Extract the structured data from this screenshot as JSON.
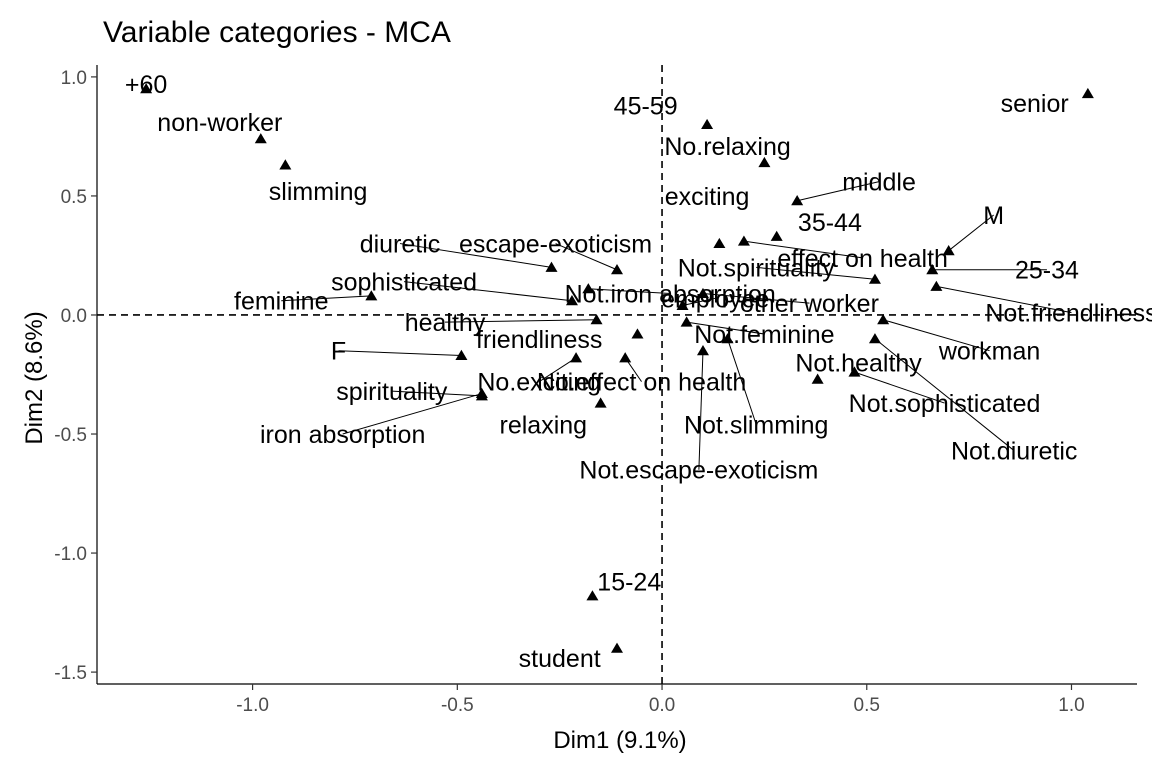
{
  "chart_data": {
    "type": "scatter",
    "title": "Variable categories - MCA",
    "xlabel": "Dim1 (9.1%)",
    "ylabel": "Dim2 (8.6%)",
    "xlim": [
      -1.38,
      1.16
    ],
    "ylim": [
      -1.55,
      1.05
    ],
    "xticks": [
      -1.0,
      -0.5,
      0.0,
      0.5,
      1.0
    ],
    "xtick_labels": [
      "-1.0",
      "-0.5",
      "0.0",
      "0.5",
      "1.0"
    ],
    "yticks": [
      -1.5,
      -1.0,
      -0.5,
      0.0,
      0.5,
      1.0
    ],
    "ytick_labels": [
      "-1.5",
      "-1.0",
      "-0.5",
      "0.0",
      "0.5",
      "1.0"
    ],
    "reference_lines": {
      "x": 0,
      "y": 0
    },
    "grid": false,
    "legend": "none",
    "points": [
      {
        "label": "+60",
        "x": -1.26,
        "y": 0.95,
        "label_x": -1.26,
        "label_y": 0.97,
        "leader": false
      },
      {
        "label": "non-worker",
        "x": -0.98,
        "y": 0.74,
        "label_x": -1.08,
        "label_y": 0.81,
        "leader": false
      },
      {
        "label": "slimming",
        "x": -0.92,
        "y": 0.63,
        "label_x": -0.84,
        "label_y": 0.52,
        "leader": false
      },
      {
        "label": "45-59",
        "x": 0.11,
        "y": 0.8,
        "label_x": -0.04,
        "label_y": 0.88,
        "leader": false
      },
      {
        "label": "No.relaxing",
        "x": 0.25,
        "y": 0.64,
        "label_x": 0.16,
        "label_y": 0.71,
        "leader": false
      },
      {
        "label": "senior",
        "x": 1.04,
        "y": 0.93,
        "label_x": 0.91,
        "label_y": 0.89,
        "leader": false
      },
      {
        "label": "exciting",
        "x": 0.14,
        "y": 0.3,
        "label_x": 0.11,
        "label_y": 0.5,
        "leader": false
      },
      {
        "label": "middle",
        "x": 0.33,
        "y": 0.48,
        "label_x": 0.53,
        "label_y": 0.56,
        "leader": true
      },
      {
        "label": "35-44",
        "x": 0.28,
        "y": 0.33,
        "label_x": 0.41,
        "label_y": 0.39,
        "leader": false
      },
      {
        "label": "M",
        "x": 0.7,
        "y": 0.27,
        "label_x": 0.81,
        "label_y": 0.42,
        "leader": true
      },
      {
        "label": "effect on health",
        "x": 0.2,
        "y": 0.31,
        "label_x": 0.49,
        "label_y": 0.24,
        "leader": true
      },
      {
        "label": "25-34",
        "x": 0.66,
        "y": 0.19,
        "label_x": 0.94,
        "label_y": 0.19,
        "leader": true
      },
      {
        "label": "Not.spirituality",
        "x": 0.52,
        "y": 0.15,
        "label_x": 0.23,
        "label_y": 0.2,
        "leader": true
      },
      {
        "label": "Not.friendliness",
        "x": 0.67,
        "y": 0.12,
        "label_x": 1.0,
        "label_y": 0.01,
        "leader": true
      },
      {
        "label": "other worker",
        "x": 0.1,
        "y": 0.09,
        "label_x": 0.36,
        "label_y": 0.05,
        "leader": true
      },
      {
        "label": "employee",
        "x": 0.05,
        "y": 0.04,
        "label_x": 0.13,
        "label_y": 0.07,
        "leader": true
      },
      {
        "label": "Not.iron absorption",
        "x": -0.18,
        "y": 0.11,
        "label_x": 0.02,
        "label_y": 0.09,
        "leader": true
      },
      {
        "label": "sophisticated",
        "x": -0.22,
        "y": 0.06,
        "label_x": -0.63,
        "label_y": 0.14,
        "leader": true
      },
      {
        "label": "diuretic",
        "x": -0.27,
        "y": 0.2,
        "label_x": -0.64,
        "label_y": 0.3,
        "leader": true
      },
      {
        "label": "escape-exoticism",
        "x": -0.11,
        "y": 0.19,
        "label_x": -0.26,
        "label_y": 0.3,
        "leader": true
      },
      {
        "label": "feminine",
        "x": -0.71,
        "y": 0.08,
        "label_x": -0.93,
        "label_y": 0.06,
        "leader": true
      },
      {
        "label": "healthy",
        "x": -0.16,
        "y": -0.02,
        "label_x": -0.53,
        "label_y": -0.03,
        "leader": true
      },
      {
        "label": "Not.feminine",
        "x": 0.06,
        "y": -0.03,
        "label_x": 0.25,
        "label_y": -0.08,
        "leader": true
      },
      {
        "label": "friendliness",
        "x": -0.06,
        "y": -0.08,
        "label_x": -0.3,
        "label_y": -0.1,
        "leader": false
      },
      {
        "label": "workman",
        "x": 0.54,
        "y": -0.02,
        "label_x": 0.8,
        "label_y": -0.15,
        "leader": true
      },
      {
        "label": "Not.diuretic",
        "x": 0.52,
        "y": -0.1,
        "label_x": 0.86,
        "label_y": -0.57,
        "leader": true
      },
      {
        "label": "F",
        "x": -0.49,
        "y": -0.17,
        "label_x": -0.79,
        "label_y": -0.15,
        "leader": true
      },
      {
        "label": "No.exciting",
        "x": -0.21,
        "y": -0.18,
        "label_x": -0.3,
        "label_y": -0.28,
        "leader": true
      },
      {
        "label": "No.effect on health",
        "x": -0.09,
        "y": -0.18,
        "label_x": -0.05,
        "label_y": -0.28,
        "leader": true
      },
      {
        "label": "Not.healthy",
        "x": 0.38,
        "y": -0.27,
        "label_x": 0.48,
        "label_y": -0.2,
        "leader": false
      },
      {
        "label": "Not.sophisticated",
        "x": 0.47,
        "y": -0.24,
        "label_x": 0.69,
        "label_y": -0.37,
        "leader": true
      },
      {
        "label": "spirituality",
        "x": -0.44,
        "y": -0.34,
        "label_x": -0.66,
        "label_y": -0.32,
        "leader": true
      },
      {
        "label": "relaxing",
        "x": -0.15,
        "y": -0.37,
        "label_x": -0.29,
        "label_y": -0.46,
        "leader": false
      },
      {
        "label": "iron absorption",
        "x": -0.44,
        "y": -0.33,
        "label_x": -0.78,
        "label_y": -0.5,
        "leader": true
      },
      {
        "label": "Not.slimming",
        "x": 0.16,
        "y": -0.1,
        "label_x": 0.23,
        "label_y": -0.46,
        "leader": true
      },
      {
        "label": "Not.escape-exoticism",
        "x": 0.1,
        "y": -0.15,
        "label_x": 0.09,
        "label_y": -0.65,
        "leader": true
      },
      {
        "label": "15-24",
        "x": -0.17,
        "y": -1.18,
        "label_x": -0.08,
        "label_y": -1.12,
        "leader": false
      },
      {
        "label": "student",
        "x": -0.11,
        "y": -1.4,
        "label_x": -0.25,
        "label_y": -1.44,
        "leader": false
      }
    ]
  }
}
